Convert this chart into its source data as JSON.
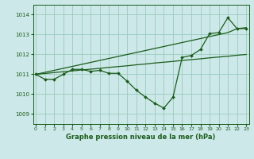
{
  "background_color": "#cce8e8",
  "grid_color": "#99ccbb",
  "line_color": "#1a5c1a",
  "text_color": "#1a5c1a",
  "xlabel": "Graphe pression niveau de la mer (hPa)",
  "ylim": [
    1008.5,
    1014.5
  ],
  "yticks": [
    1009,
    1010,
    1011,
    1012,
    1013,
    1014
  ],
  "xtick_labels": [
    "0",
    "1",
    "2",
    "3",
    "4",
    "5",
    "6",
    "7",
    "8",
    "9",
    "10",
    "11",
    "12",
    "13",
    "14",
    "15",
    "16",
    "17",
    "18",
    "19",
    "20",
    "21",
    "22",
    "23"
  ],
  "series_jagged": [
    1011.0,
    1010.75,
    1010.75,
    1011.0,
    1011.25,
    1011.25,
    1011.15,
    1011.2,
    1011.05,
    1011.05,
    1010.65,
    1010.2,
    1009.85,
    1009.55,
    1009.3,
    1009.85,
    1011.85,
    1011.95,
    1012.25,
    1013.05,
    1013.1,
    1013.85,
    1013.3,
    1013.3
  ],
  "series_straight1": [
    1011.0,
    1011.04,
    1011.09,
    1011.13,
    1011.17,
    1011.22,
    1011.26,
    1011.3,
    1011.35,
    1011.39,
    1011.43,
    1011.48,
    1011.52,
    1011.57,
    1011.61,
    1011.65,
    1011.7,
    1011.74,
    1011.78,
    1011.83,
    1011.87,
    1011.91,
    1011.96,
    1012.0
  ],
  "series_straight2": [
    1011.0,
    1011.1,
    1011.2,
    1011.3,
    1011.4,
    1011.5,
    1011.6,
    1011.7,
    1011.8,
    1011.9,
    1012.0,
    1012.1,
    1012.2,
    1012.3,
    1012.4,
    1012.5,
    1012.6,
    1012.7,
    1012.8,
    1012.9,
    1013.0,
    1013.1,
    1013.3,
    1013.35
  ],
  "figsize": [
    3.2,
    2.0
  ],
  "dpi": 100
}
